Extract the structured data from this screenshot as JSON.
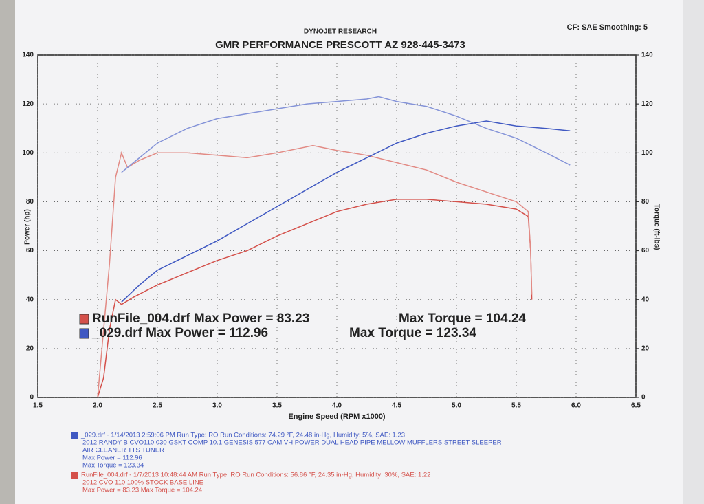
{
  "chart_data": {
    "type": "line",
    "header": "DYNOJET RESEARCH",
    "corner_note": "CF: SAE  Smoothing: 5",
    "title": "GMR PERFORMANCE PRESCOTT AZ 928-445-3473",
    "xlabel": "Engine Speed (RPM x1000)",
    "ylabel": "Power (hp)",
    "y2label": "Torque (ft-lbs)",
    "xlim": [
      1.5,
      6.5
    ],
    "xticks": [
      1.5,
      {
        "value": 2,
        "label": "2.0"
      },
      2.5,
      {
        "value": 3,
        "label": "3.0"
      },
      3.5,
      {
        "value": 4,
        "label": "4.0"
      },
      4.5,
      {
        "value": 5,
        "label": "5.0"
      },
      5.5,
      {
        "value": 6,
        "label": "6.0"
      },
      6.5
    ],
    "ylim": [
      0,
      140
    ],
    "yticks": [
      0,
      20,
      40,
      60,
      80,
      100,
      120,
      140
    ],
    "y2lim": [
      0,
      140
    ],
    "y2ticks": [
      0,
      20,
      40,
      60,
      80,
      100,
      120,
      140
    ],
    "grid": true,
    "series": [
      {
        "color": "#d4504a",
        "axis": "y",
        "x": [
          2.0,
          2.05,
          2.1,
          2.15,
          2.2,
          2.3,
          2.5,
          2.75,
          3.0,
          3.25,
          3.5,
          3.75,
          4.0,
          4.25,
          4.5,
          4.75,
          5.0,
          5.25,
          5.5,
          5.6,
          5.62,
          5.63
        ],
        "values": [
          0,
          8,
          28,
          40,
          38,
          41,
          46,
          51,
          56,
          60,
          66,
          71,
          76,
          79,
          81,
          81,
          80,
          79,
          77,
          74,
          60,
          40
        ]
      },
      {
        "color": "#e28a84",
        "axis": "y2",
        "x": [
          2.0,
          2.1,
          2.15,
          2.2,
          2.25,
          2.35,
          2.5,
          2.75,
          3.0,
          3.25,
          3.5,
          3.8,
          4.0,
          4.25,
          4.5,
          4.75,
          5.0,
          5.25,
          5.5,
          5.6,
          5.62,
          5.63
        ],
        "values": [
          0,
          55,
          90,
          100,
          94,
          97,
          100,
          100,
          99,
          98,
          100,
          103,
          101,
          99,
          96,
          93,
          88,
          84,
          80,
          76,
          60,
          42
        ]
      },
      {
        "color": "#3f58c2",
        "axis": "y",
        "x": [
          2.2,
          2.35,
          2.5,
          2.75,
          3.0,
          3.25,
          3.5,
          3.75,
          4.0,
          4.25,
          4.5,
          4.75,
          5.0,
          5.25,
          5.5,
          5.75,
          5.95
        ],
        "values": [
          39,
          46,
          52,
          58,
          64,
          71,
          78,
          85,
          92,
          98,
          104,
          108,
          111,
          113,
          111,
          110,
          109
        ]
      },
      {
        "color": "#8493d8",
        "axis": "y2",
        "x": [
          2.2,
          2.3,
          2.5,
          2.75,
          3.0,
          3.25,
          3.5,
          3.75,
          4.0,
          4.25,
          4.35,
          4.5,
          4.75,
          5.0,
          5.25,
          5.5,
          5.75,
          5.95
        ],
        "values": [
          92,
          96,
          104,
          110,
          114,
          116,
          118,
          120,
          121,
          122,
          123,
          121,
          119,
          115,
          110,
          106,
          100,
          95
        ]
      }
    ],
    "legend": [
      {
        "color": "#d4504a",
        "file": "RunFile_004.drf Max Power = 83.23",
        "torque": "Max Torque = 104.24"
      },
      {
        "color": "#3f58c2",
        "file": "_029.drf Max Power = 112.96",
        "torque": "Max Torque = 123.34"
      }
    ],
    "footer": [
      {
        "color": "#3f58c2",
        "lines": [
          "_029.drf - 1/14/2013 2:59:06 PM  Run Type: RO  Run Conditions: 74.29 °F, 24.48 in-Hg,  Humidity:  5%,  SAE: 1.23",
          "2012  RANDY B CVO110 030 GSKT COMP 10.1  GENESIS 577 CAM VH POWER DUAL HEAD PIPE MELLOW MUFFLERS STREET SLEEPER",
          "AIR CLEANER TTS TUNER",
          "Max Power = 112.96",
          "Max Torque = 123.34"
        ]
      },
      {
        "color": "#d4504a",
        "lines": [
          "RunFile_004.drf - 1/7/2013 10:48:44 AM  Run Type: RO  Run Conditions: 56.86 °F, 24.35 in-Hg,  Humidity:  30%,  SAE: 1.22",
          "2012 CVO 110 100% STOCK BASE LINE",
          "Max Power = 83.23  Max Torque = 104.24"
        ]
      }
    ]
  }
}
